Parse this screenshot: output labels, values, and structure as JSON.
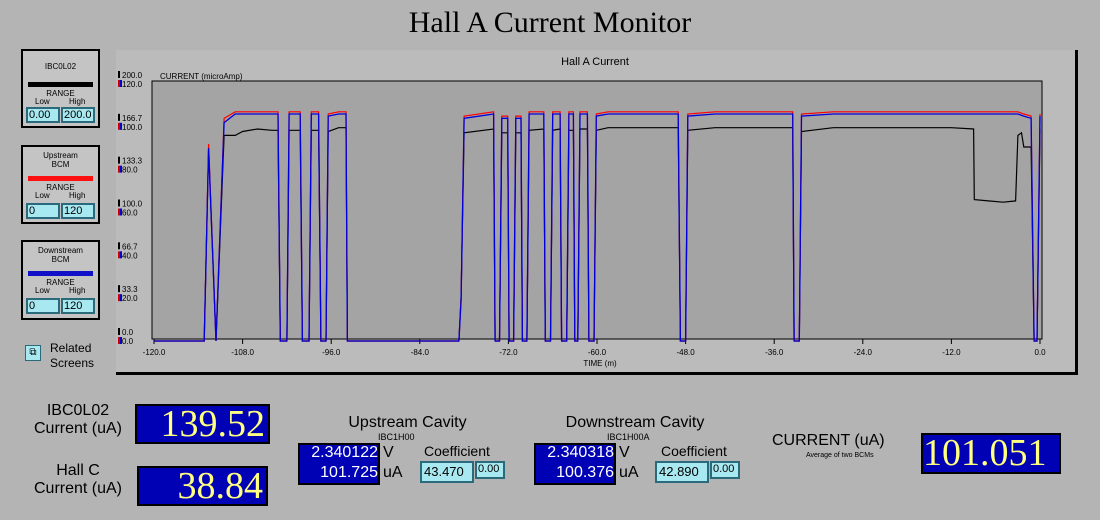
{
  "title": "Hall A Current Monitor",
  "panels": [
    {
      "name": "IBC0L02",
      "color": "#000000",
      "range_label": "RANGE",
      "low_label": "Low",
      "high_label": "High",
      "low": "0.00",
      "high": "200.0"
    },
    {
      "name": "Upstream\nBCM",
      "color": "#ff1010",
      "range_label": "RANGE",
      "low_label": "Low",
      "high_label": "High",
      "low": "0",
      "high": "120"
    },
    {
      "name": "Downstream\nBCM",
      "color": "#1010c8",
      "range_label": "RANGE",
      "low_label": "Low",
      "high_label": "High",
      "low": "0",
      "high": "120"
    }
  ],
  "related": {
    "icon": "related-screens-icon",
    "label_line1": "Related",
    "label_line2": "Screens"
  },
  "chart_data": {
    "type": "line",
    "title": "Hall A Current",
    "ylabel": "CURRENT (microAmp)",
    "xlabel": "TIME (m)",
    "xlim": [
      -120,
      0
    ],
    "x_ticks": [
      "-120.0",
      "-108.0",
      "-96.0",
      "-84.0",
      "-72.0",
      "-60.0",
      "-48.0",
      "-36.0",
      "-24.0",
      "-12.0",
      "0.0"
    ],
    "y_ticks_black": [
      "200.0",
      "166.7",
      "133.3",
      "100.0",
      "66.7",
      "33.3",
      "0.0"
    ],
    "y_ticks_colored": [
      "120.0",
      "100.0",
      "80.0",
      "60.0",
      "40.0",
      "20.0",
      "0.0"
    ],
    "grid": false,
    "series": [
      {
        "color": "#000000",
        "ylim": [
          0,
          200
        ],
        "points": [
          [
            -120,
            0
          ],
          [
            -113.2,
            0
          ],
          [
            -112.6,
            150
          ],
          [
            -111.6,
            0
          ],
          [
            -110.5,
            160
          ],
          [
            -109,
            160
          ],
          [
            -108,
            163
          ],
          [
            -106,
            165
          ],
          [
            -104,
            164
          ],
          [
            -103.2,
            164
          ],
          [
            -102.9,
            0
          ],
          [
            -102.0,
            0
          ],
          [
            -101.7,
            164
          ],
          [
            -100.2,
            164
          ],
          [
            -99.9,
            0
          ],
          [
            -99.0,
            0
          ],
          [
            -98.7,
            164
          ],
          [
            -97.7,
            164
          ],
          [
            -97.4,
            0
          ],
          [
            -96.7,
            0
          ],
          [
            -96.4,
            163
          ],
          [
            -95.0,
            166
          ],
          [
            -94.0,
            166
          ],
          [
            -93.8,
            0
          ],
          [
            -78.7,
            0
          ],
          [
            -78.4,
            35
          ],
          [
            -78.0,
            162
          ],
          [
            -74.0,
            165
          ],
          [
            -73.8,
            0
          ],
          [
            -73.2,
            0
          ],
          [
            -72.9,
            162
          ],
          [
            -72.1,
            162
          ],
          [
            -71.9,
            0
          ],
          [
            -71.3,
            0
          ],
          [
            -71.0,
            162
          ],
          [
            -70.3,
            162
          ],
          [
            -70.1,
            0
          ],
          [
            -69.5,
            0
          ],
          [
            -69.2,
            164
          ],
          [
            -67.2,
            165
          ],
          [
            -67.0,
            0
          ],
          [
            -66.3,
            0
          ],
          [
            -66.0,
            164
          ],
          [
            -65.0,
            165
          ],
          [
            -64.8,
            0
          ],
          [
            -64.1,
            0
          ],
          [
            -63.8,
            164
          ],
          [
            -63.2,
            164
          ],
          [
            -63.0,
            0
          ],
          [
            -62.6,
            0
          ],
          [
            -62.3,
            165
          ],
          [
            -61.3,
            165
          ],
          [
            -61.1,
            0
          ],
          [
            -60.4,
            0
          ],
          [
            -60.1,
            164
          ],
          [
            -58.5,
            166
          ],
          [
            -55,
            166
          ],
          [
            -52,
            166
          ],
          [
            -49,
            166
          ],
          [
            -48.7,
            0
          ],
          [
            -48.0,
            0
          ],
          [
            -47.7,
            164
          ],
          [
            -44,
            166
          ],
          [
            -40,
            166
          ],
          [
            -36,
            166
          ],
          [
            -33.5,
            166
          ],
          [
            -33.3,
            0
          ],
          [
            -32.6,
            0
          ],
          [
            -32.3,
            163
          ],
          [
            -28,
            166
          ],
          [
            -24,
            166
          ],
          [
            -20,
            166
          ],
          [
            -16,
            166
          ],
          [
            -12,
            166
          ],
          [
            -9.0,
            165
          ],
          [
            -8.9,
            110
          ],
          [
            -7,
            109
          ],
          [
            -5,
            108
          ],
          [
            -3.3,
            109
          ],
          [
            -3.0,
            160
          ],
          [
            -2.5,
            162
          ],
          [
            -2.2,
            151
          ],
          [
            -1.2,
            151
          ],
          [
            -0.8,
            0
          ],
          [
            -0.4,
            0
          ],
          [
            0,
            165
          ]
        ]
      },
      {
        "color": "#ff0000",
        "ylim": [
          0,
          120
        ],
        "points": [
          [
            -120,
            0
          ],
          [
            -113.2,
            0
          ],
          [
            -112.6,
            92
          ],
          [
            -111.6,
            0
          ],
          [
            -110.5,
            104
          ],
          [
            -109,
            107
          ],
          [
            -108,
            107
          ],
          [
            -106,
            107
          ],
          [
            -104,
            107
          ],
          [
            -103.2,
            107
          ],
          [
            -102.9,
            0
          ],
          [
            -102.0,
            0
          ],
          [
            -101.7,
            107
          ],
          [
            -100.2,
            107
          ],
          [
            -99.9,
            0
          ],
          [
            -99.0,
            0
          ],
          [
            -98.7,
            107
          ],
          [
            -97.7,
            107
          ],
          [
            -97.4,
            0
          ],
          [
            -96.7,
            0
          ],
          [
            -96.4,
            106
          ],
          [
            -95.0,
            107
          ],
          [
            -94.0,
            107
          ],
          [
            -93.8,
            0
          ],
          [
            -78.7,
            0
          ],
          [
            -78.4,
            20
          ],
          [
            -78.0,
            105
          ],
          [
            -74.0,
            107
          ],
          [
            -73.8,
            0
          ],
          [
            -73.2,
            0
          ],
          [
            -72.9,
            105
          ],
          [
            -72.1,
            105
          ],
          [
            -71.9,
            0
          ],
          [
            -71.3,
            0
          ],
          [
            -71.0,
            105
          ],
          [
            -70.3,
            105
          ],
          [
            -70.1,
            0
          ],
          [
            -69.5,
            0
          ],
          [
            -69.2,
            107
          ],
          [
            -67.2,
            107
          ],
          [
            -67.0,
            0
          ],
          [
            -66.3,
            0
          ],
          [
            -66.0,
            107
          ],
          [
            -65.0,
            107
          ],
          [
            -64.8,
            0
          ],
          [
            -64.1,
            0
          ],
          [
            -63.8,
            107
          ],
          [
            -63.2,
            107
          ],
          [
            -63.0,
            0
          ],
          [
            -62.6,
            0
          ],
          [
            -62.3,
            107
          ],
          [
            -61.3,
            107
          ],
          [
            -61.1,
            0
          ],
          [
            -60.4,
            0
          ],
          [
            -60.1,
            106
          ],
          [
            -58.5,
            107
          ],
          [
            -55,
            107
          ],
          [
            -52,
            107
          ],
          [
            -49,
            107
          ],
          [
            -48.7,
            0
          ],
          [
            -48.0,
            0
          ],
          [
            -47.7,
            106
          ],
          [
            -44,
            107
          ],
          [
            -40,
            107
          ],
          [
            -36,
            107
          ],
          [
            -33.5,
            107
          ],
          [
            -33.3,
            0
          ],
          [
            -32.6,
            0
          ],
          [
            -32.3,
            106
          ],
          [
            -28,
            107
          ],
          [
            -24,
            107
          ],
          [
            -20,
            107
          ],
          [
            -16,
            107
          ],
          [
            -12,
            107
          ],
          [
            -9.0,
            107
          ],
          [
            -5,
            107
          ],
          [
            -3.3,
            107
          ],
          [
            -3.0,
            107
          ],
          [
            -2.2,
            106
          ],
          [
            -1.2,
            105
          ],
          [
            -0.8,
            0
          ],
          [
            -0.4,
            0
          ],
          [
            0,
            106
          ]
        ]
      },
      {
        "color": "#0000dd",
        "ylim": [
          0,
          120
        ],
        "points": [
          [
            -120,
            0
          ],
          [
            -113.2,
            0
          ],
          [
            -112.6,
            90
          ],
          [
            -111.6,
            0
          ],
          [
            -110.5,
            102
          ],
          [
            -109,
            106
          ],
          [
            -108,
            106
          ],
          [
            -106,
            106
          ],
          [
            -104,
            106
          ],
          [
            -103.2,
            106
          ],
          [
            -102.9,
            0
          ],
          [
            -102.0,
            0
          ],
          [
            -101.7,
            106
          ],
          [
            -100.2,
            106
          ],
          [
            -99.9,
            0
          ],
          [
            -99.0,
            0
          ],
          [
            -98.7,
            106
          ],
          [
            -97.7,
            106
          ],
          [
            -97.4,
            0
          ],
          [
            -96.7,
            0
          ],
          [
            -96.4,
            105
          ],
          [
            -95.0,
            106
          ],
          [
            -94.0,
            106
          ],
          [
            -93.8,
            0
          ],
          [
            -78.7,
            0
          ],
          [
            -78.4,
            19
          ],
          [
            -78.0,
            104
          ],
          [
            -74.0,
            106
          ],
          [
            -73.8,
            0
          ],
          [
            -73.2,
            0
          ],
          [
            -72.9,
            104
          ],
          [
            -72.1,
            104
          ],
          [
            -71.9,
            0
          ],
          [
            -71.3,
            0
          ],
          [
            -71.0,
            104
          ],
          [
            -70.3,
            104
          ],
          [
            -70.1,
            0
          ],
          [
            -69.5,
            0
          ],
          [
            -69.2,
            106
          ],
          [
            -67.2,
            106
          ],
          [
            -67.0,
            0
          ],
          [
            -66.3,
            0
          ],
          [
            -66.0,
            106
          ],
          [
            -65.0,
            106
          ],
          [
            -64.8,
            0
          ],
          [
            -64.1,
            0
          ],
          [
            -63.8,
            106
          ],
          [
            -63.2,
            106
          ],
          [
            -63.0,
            0
          ],
          [
            -62.6,
            0
          ],
          [
            -62.3,
            106
          ],
          [
            -61.3,
            106
          ],
          [
            -61.1,
            0
          ],
          [
            -60.4,
            0
          ],
          [
            -60.1,
            105
          ],
          [
            -58.5,
            106
          ],
          [
            -55,
            106
          ],
          [
            -52,
            106
          ],
          [
            -49,
            106
          ],
          [
            -48.7,
            0
          ],
          [
            -48.0,
            0
          ],
          [
            -47.7,
            105
          ],
          [
            -44,
            106
          ],
          [
            -40,
            106
          ],
          [
            -36,
            106
          ],
          [
            -33.5,
            106
          ],
          [
            -33.3,
            0
          ],
          [
            -32.6,
            0
          ],
          [
            -32.3,
            105
          ],
          [
            -28,
            106
          ],
          [
            -24,
            106
          ],
          [
            -20,
            106
          ],
          [
            -16,
            106
          ],
          [
            -12,
            106
          ],
          [
            -9.0,
            106
          ],
          [
            -5,
            106
          ],
          [
            -3.3,
            106
          ],
          [
            -3.0,
            106
          ],
          [
            -2.2,
            105
          ],
          [
            -1.2,
            104
          ],
          [
            -0.8,
            0
          ],
          [
            -0.4,
            0
          ],
          [
            0,
            105
          ]
        ]
      }
    ]
  },
  "ibc": {
    "label_line1": "IBC0L02",
    "label_line2": "Current (uA)",
    "value": "139.52"
  },
  "hallc": {
    "label_line1": "Hall C",
    "label_line2": "Current (uA)",
    "value": "38.84"
  },
  "upstream": {
    "title": "Upstream Cavity",
    "sub": "IBC1H00",
    "volts": "2.340122",
    "volts_unit": "V",
    "amps": "101.725",
    "amps_unit": "uA",
    "coef_label": "Coefficient",
    "coef": "43.470",
    "offset": "0.00"
  },
  "downstream": {
    "title": "Downstream Cavity",
    "sub": "IBC1H00A",
    "volts": "2.340318",
    "volts_unit": "V",
    "amps": "100.376",
    "amps_unit": "uA",
    "coef_label": "Coefficient",
    "coef": "42.890",
    "offset": "0.00"
  },
  "current": {
    "label": "CURRENT (uA)",
    "sub": "Average of two BCMs",
    "value": "101.051"
  }
}
